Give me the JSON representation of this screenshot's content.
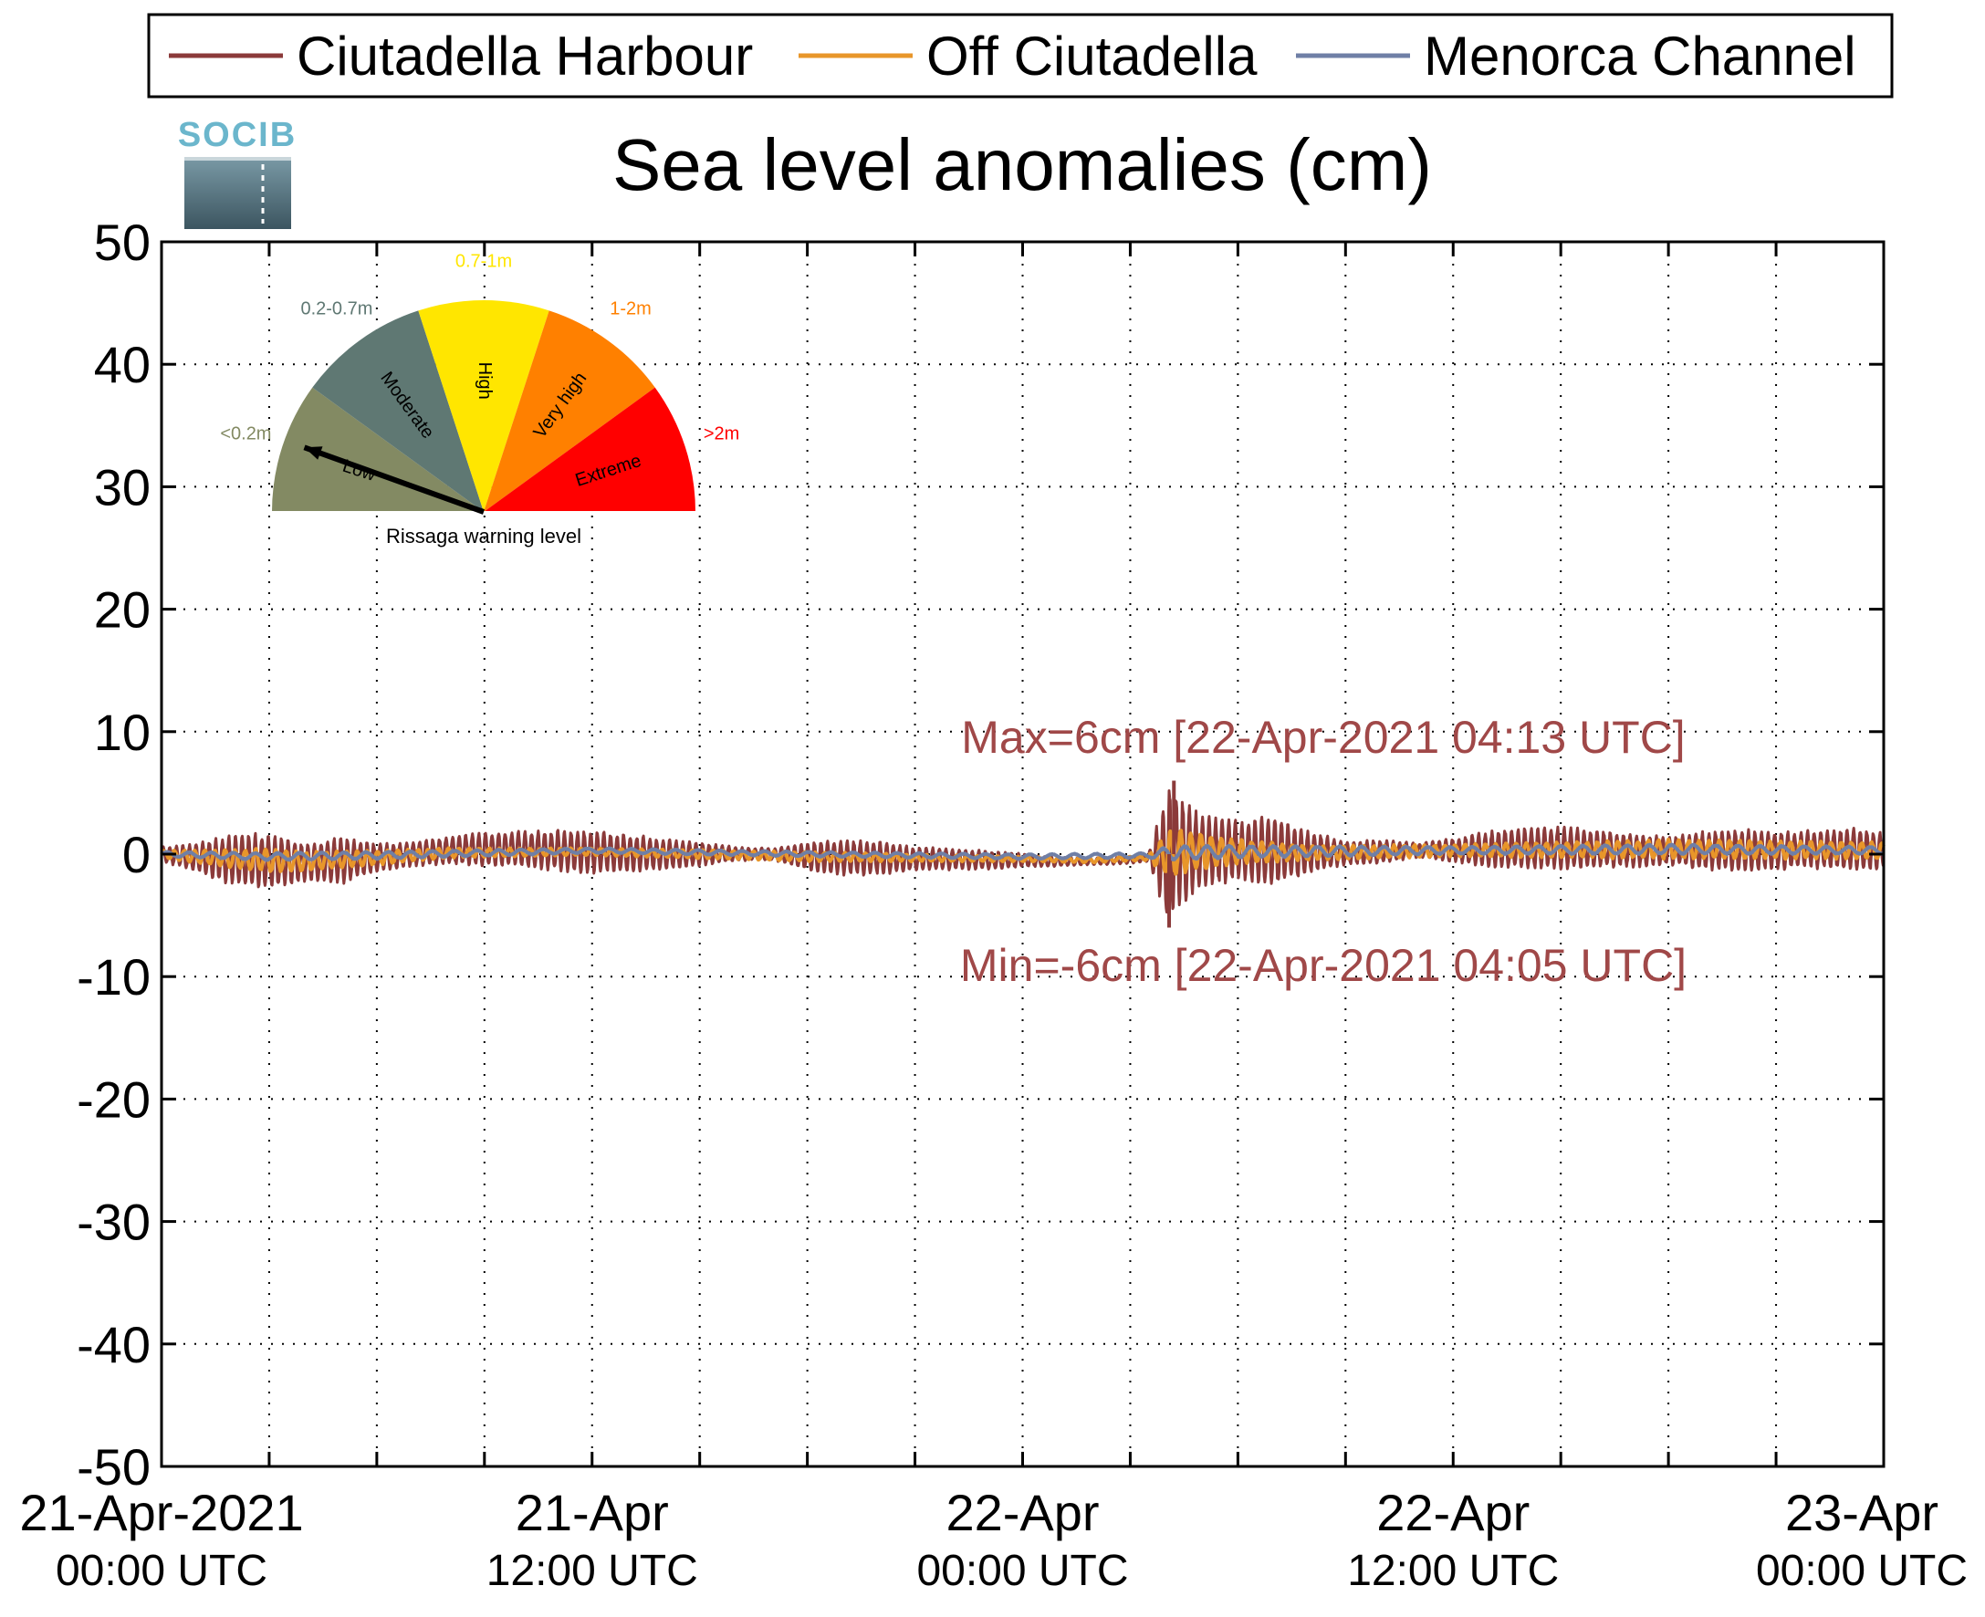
{
  "chart_data": {
    "type": "line",
    "title": "Sea level anomalies (cm)",
    "logo_text": "SOCIB",
    "ylim": [
      -50,
      50
    ],
    "yticks": [
      {
        "v": 50,
        "label": "50"
      },
      {
        "v": 40,
        "label": "40"
      },
      {
        "v": 30,
        "label": "30"
      },
      {
        "v": 20,
        "label": "20"
      },
      {
        "v": 10,
        "label": "10"
      },
      {
        "v": 0,
        "label": "0"
      },
      {
        "v": -10,
        "label": "-10"
      },
      {
        "v": -20,
        "label": "-20"
      },
      {
        "v": -30,
        "label": "-30"
      },
      {
        "v": -40,
        "label": "-40"
      },
      {
        "v": -50,
        "label": "-50"
      }
    ],
    "xlim": [
      "2021-04-21 00:00",
      "2021-04-23 00:00"
    ],
    "xlabels": [
      {
        "t": "2021-04-21 00:00",
        "line1": "21-Apr-2021",
        "line2": "00:00 UTC"
      },
      {
        "t": "2021-04-21 12:00",
        "line1": "21-Apr",
        "line2": "12:00 UTC"
      },
      {
        "t": "2021-04-22 00:00",
        "line1": "22-Apr",
        "line2": "00:00 UTC"
      },
      {
        "t": "2021-04-22 12:00",
        "line1": "22-Apr",
        "line2": "12:00 UTC"
      },
      {
        "t": "2021-04-23 00:00",
        "line1": "23-Apr",
        "line2": "00:00 UTC"
      }
    ],
    "xgrid_ticks": [
      "2021-04-21 03:00",
      "2021-04-21 06:00",
      "2021-04-21 09:00",
      "2021-04-21 12:00",
      "2021-04-21 15:00",
      "2021-04-21 18:00",
      "2021-04-21 21:00",
      "2021-04-22 00:00",
      "2021-04-22 03:00",
      "2021-04-22 06:00",
      "2021-04-22 09:00",
      "2021-04-22 12:00",
      "2021-04-22 15:00",
      "2021-04-22 18:00",
      "2021-04-22 21:00"
    ],
    "grid": true,
    "legend_position": "top",
    "series": [
      {
        "name": "Ciutadella Harbour",
        "color": "#8b3a3a",
        "envelope": {
          "t": [
            "2021-04-21 00:00",
            "2021-04-21 01:00",
            "2021-04-21 02:00",
            "2021-04-21 03:00",
            "2021-04-21 04:00",
            "2021-04-21 05:00",
            "2021-04-21 06:00",
            "2021-04-21 07:00",
            "2021-04-21 08:00",
            "2021-04-21 09:00",
            "2021-04-21 10:00",
            "2021-04-21 11:00",
            "2021-04-21 12:00",
            "2021-04-21 13:00",
            "2021-04-21 14:00",
            "2021-04-21 15:00",
            "2021-04-21 16:00",
            "2021-04-21 17:00",
            "2021-04-21 18:00",
            "2021-04-21 19:00",
            "2021-04-21 20:00",
            "2021-04-21 21:00",
            "2021-04-21 22:00",
            "2021-04-21 23:00",
            "2021-04-22 00:00",
            "2021-04-22 01:00",
            "2021-04-22 02:00",
            "2021-04-22 03:00",
            "2021-04-22 03:30",
            "2021-04-22 04:05",
            "2021-04-22 04:13",
            "2021-04-22 05:00",
            "2021-04-22 06:00",
            "2021-04-22 07:00",
            "2021-04-22 08:00",
            "2021-04-22 09:00",
            "2021-04-22 10:00",
            "2021-04-22 11:00",
            "2021-04-22 12:00",
            "2021-04-22 13:00",
            "2021-04-22 14:00",
            "2021-04-22 15:00",
            "2021-04-22 16:00",
            "2021-04-22 17:00",
            "2021-04-22 18:00",
            "2021-04-22 19:00",
            "2021-04-22 20:00",
            "2021-04-22 21:00",
            "2021-04-22 22:00",
            "2021-04-22 23:00",
            "2021-04-23 00:00"
          ],
          "amp": [
            0.6,
            1.2,
            2.2,
            2.4,
            1.6,
            2.0,
            1.2,
            1.0,
            1.2,
            1.4,
            1.5,
            1.7,
            1.8,
            1.6,
            1.3,
            1.0,
            0.6,
            0.5,
            1.2,
            1.5,
            1.4,
            1.0,
            0.9,
            0.8,
            0.6,
            0.4,
            0.3,
            0.3,
            0.3,
            6.0,
            5.0,
            3.0,
            2.6,
            3.0,
            1.8,
            1.0,
            1.0,
            0.6,
            1.0,
            1.5,
            1.8,
            1.8,
            1.6,
            1.4,
            1.2,
            1.6,
            1.8,
            1.6,
            1.6,
            1.8,
            1.6
          ],
          "offset": [
            0.0,
            -0.3,
            -0.5,
            -0.6,
            -0.7,
            -0.5,
            -0.3,
            0.0,
            0.3,
            0.4,
            0.4,
            0.3,
            0.2,
            0.1,
            0.0,
            0.0,
            0.0,
            0.0,
            -0.2,
            -0.3,
            -0.3,
            -0.4,
            -0.4,
            -0.5,
            -0.5,
            -0.6,
            -0.6,
            -0.5,
            -0.3,
            0.0,
            0.2,
            0.3,
            0.3,
            0.2,
            0.1,
            0.1,
            0.2,
            0.3,
            0.3,
            0.4,
            0.5,
            0.5,
            0.4,
            0.3,
            0.3,
            0.3,
            0.3,
            0.3,
            0.4,
            0.4,
            0.3
          ]
        }
      },
      {
        "name": "Off Ciutadella",
        "color": "#e8962a",
        "envelope": {
          "t": [
            "2021-04-21 00:00",
            "2021-04-21 02:00",
            "2021-04-21 03:00",
            "2021-04-21 04:00",
            "2021-04-21 06:00",
            "2021-04-21 08:00",
            "2021-04-21 12:00",
            "2021-04-21 18:00",
            "2021-04-22 00:00",
            "2021-04-22 02:00",
            "2021-04-22 03:30",
            "2021-04-22 04:05",
            "2021-04-22 04:30",
            "2021-04-22 06:00",
            "2021-04-22 08:00",
            "2021-04-22 12:00",
            "2021-04-22 18:00",
            "2021-04-23 00:00"
          ],
          "amp": [
            0.3,
            0.8,
            1.0,
            0.8,
            0.6,
            0.4,
            0.3,
            0.4,
            0.2,
            0.2,
            0.2,
            2.0,
            1.8,
            1.0,
            0.6,
            0.5,
            0.8,
            0.7
          ],
          "offset": [
            0.0,
            -0.4,
            -0.5,
            -0.6,
            -0.3,
            0.1,
            0.2,
            -0.2,
            -0.4,
            -0.5,
            -0.3,
            0.0,
            0.2,
            0.2,
            0.1,
            0.3,
            0.4,
            0.3
          ]
        }
      },
      {
        "name": "Menorca Channel",
        "color": "#6f7fa6",
        "envelope": {
          "t": [
            "2021-04-21 00:00",
            "2021-04-21 03:00",
            "2021-04-21 06:00",
            "2021-04-21 12:00",
            "2021-04-21 18:00",
            "2021-04-22 00:00",
            "2021-04-22 03:30",
            "2021-04-22 04:05",
            "2021-04-22 06:00",
            "2021-04-22 12:00",
            "2021-04-22 18:00",
            "2021-04-23 00:00"
          ],
          "amp": [
            0.2,
            0.3,
            0.3,
            0.2,
            0.2,
            0.2,
            0.2,
            0.6,
            0.5,
            0.3,
            0.4,
            0.3
          ],
          "offset": [
            0.0,
            -0.2,
            -0.1,
            0.3,
            0.0,
            -0.2,
            -0.1,
            0.1,
            0.2,
            0.3,
            0.4,
            0.3
          ]
        }
      }
    ],
    "annotations": {
      "max_label": "Max=6cm [22-Apr-2021 04:13 UTC]",
      "max_value": 6,
      "max_time": "2021-04-22 04:13",
      "min_label": "Min=-6cm [22-Apr-2021 04:05 UTC]",
      "min_value": -6,
      "min_time": "2021-04-22 04:05",
      "color": "#a04848"
    },
    "gauge": {
      "caption": "Rissaga warning level",
      "pointer_level": "Low",
      "segments": [
        {
          "level": "Low",
          "range": "<0.2m",
          "color": "#838a63",
          "range_color": "#838a63"
        },
        {
          "level": "Moderate",
          "range": "0.2-0.7m",
          "color": "#5f7873",
          "range_color": "#5f7873"
        },
        {
          "level": "High",
          "range": "0.7-1m",
          "color": "#ffe600",
          "range_color": "#ffe600"
        },
        {
          "level": "Very high",
          "range": "1-2m",
          "color": "#ff8000",
          "range_color": "#ff8000"
        },
        {
          "level": "Extreme",
          "range": ">2m",
          "color": "#ff0000",
          "range_color": "#ff0000"
        }
      ]
    }
  }
}
